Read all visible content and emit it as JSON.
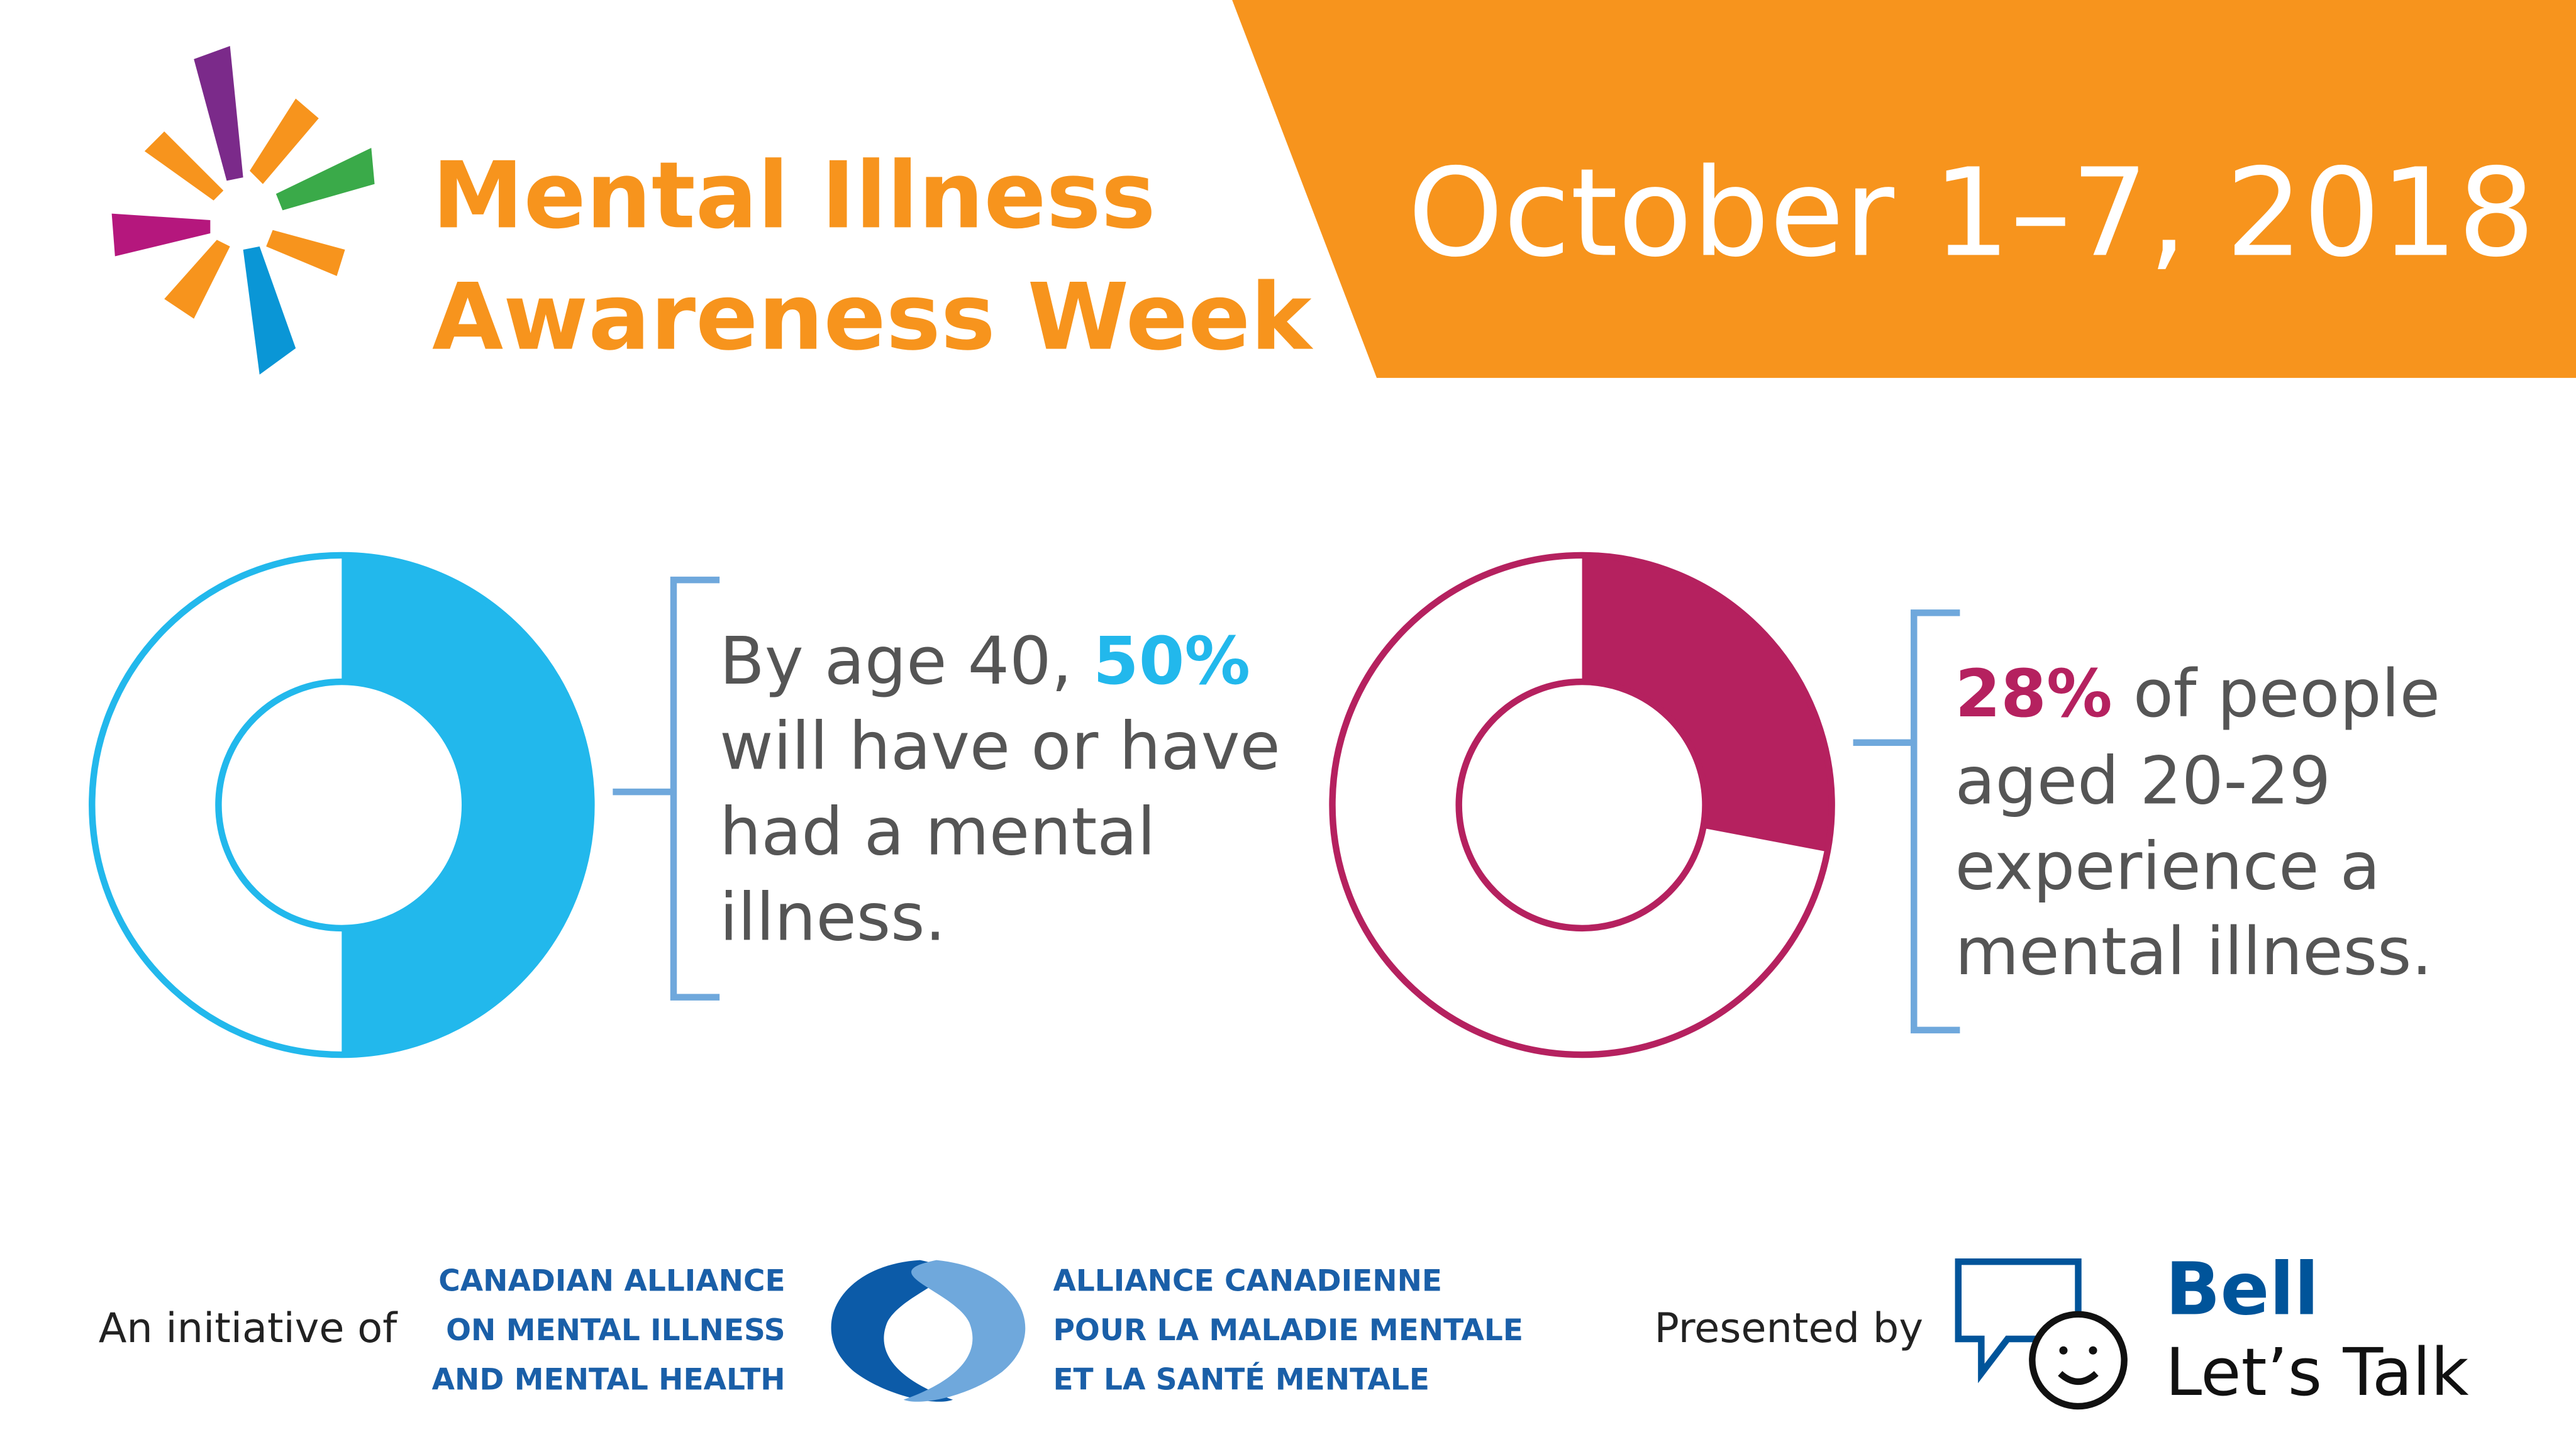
{
  "header": {
    "title_lines": [
      "Mental Illness",
      "Awareness Week"
    ],
    "date": "October 1–7, 2018"
  },
  "chart_data": [
    {
      "type": "donut",
      "values": [
        50
      ],
      "value_labels": [
        "50%"
      ],
      "color": "#22b8ec",
      "text_before": "By age 40,",
      "text_lines": [
        "will have or have",
        "had a mental",
        "illness."
      ]
    },
    {
      "type": "donut",
      "values": [
        28
      ],
      "value_labels": [
        "28%"
      ],
      "color": "#b5215f",
      "text_after": "of people",
      "text_lines": [
        "aged 20-29",
        "experience a",
        "mental illness."
      ]
    }
  ],
  "footer": {
    "initiative": "An initiative of",
    "org_en": [
      "CANADIAN ALLIANCE",
      "ON MENTAL ILLNESS",
      "AND MENTAL HEALTH"
    ],
    "org_fr": [
      "ALLIANCE CANADIENNE",
      "POUR LA MALADIE MENTALE",
      "ET LA SANTÉ MENTALE"
    ],
    "presented": "Presented by",
    "brand": "Bell",
    "brand_sub": "Let’s Talk"
  }
}
